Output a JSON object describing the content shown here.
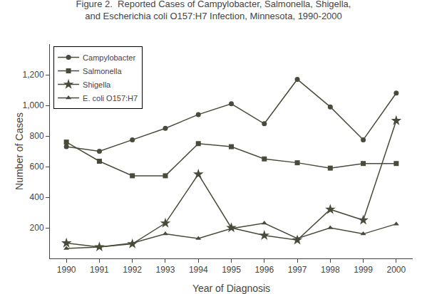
{
  "chart_data": {
    "type": "line",
    "title": "Figure 2.  Reported Cases of Campylobacter, Salmonella, Shigella, and Escherichia coli O157:H7 Infection, Minnesota, 1990-2000",
    "x_label": "Year of Diagnosis",
    "y_label": "Number of Cases",
    "x": [
      1990,
      1991,
      1992,
      1993,
      1994,
      1995,
      1996,
      1997,
      1998,
      1999,
      2000
    ],
    "color": "#4a4a3a",
    "series": [
      {
        "name": "Campylobacter",
        "marker": "circle",
        "values": [
          730,
          700,
          775,
          850,
          940,
          1010,
          880,
          1170,
          990,
          775,
          1080
        ]
      },
      {
        "name": "Salmonella",
        "marker": "square",
        "values": [
          760,
          635,
          540,
          540,
          750,
          730,
          650,
          625,
          590,
          620,
          620
        ]
      },
      {
        "name": "Shigella",
        "marker": "star",
        "values": [
          100,
          75,
          95,
          230,
          550,
          200,
          150,
          120,
          320,
          250,
          900
        ]
      },
      {
        "name": "E. coli O157:H7",
        "marker": "triangle-up",
        "values": [
          65,
          75,
          100,
          160,
          130,
          195,
          230,
          130,
          200,
          160,
          225
        ]
      }
    ],
    "xlim": [
      1989.5,
      2000.5
    ],
    "xticks": [
      1990,
      1991,
      1992,
      1993,
      1994,
      1995,
      1996,
      1997,
      1998,
      1999,
      2000
    ],
    "ylim": [
      0,
      1400
    ],
    "yticks": [
      200,
      400,
      600,
      800,
      {
        "value": 1000,
        "label": "1,000"
      },
      {
        "value": 1200,
        "label": "1,200"
      }
    ],
    "grid": false,
    "legend": "upper left"
  }
}
